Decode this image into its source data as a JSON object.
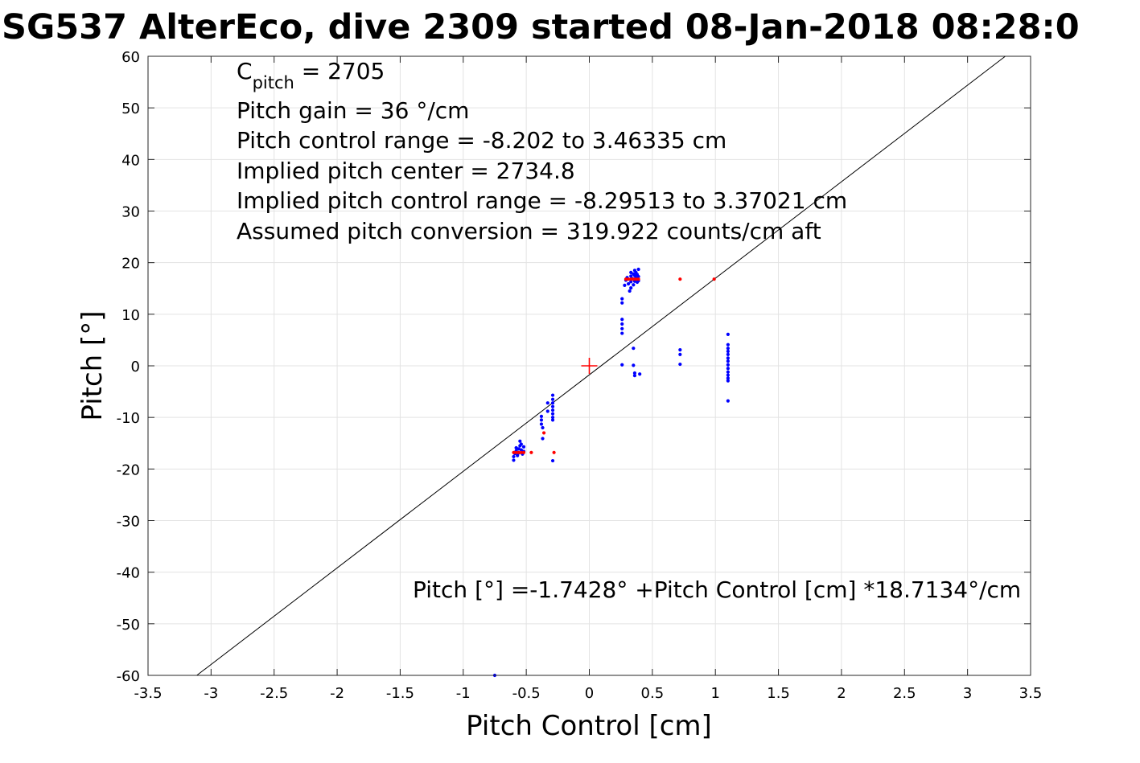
{
  "chart_data": {
    "type": "scatter",
    "title": "SG537 AlterEco, dive 2309 started 08-Jan-2018 08:28:0",
    "xlabel": "Pitch Control [cm]",
    "ylabel": "Pitch [°]",
    "xlim": [
      -3.5,
      3.5
    ],
    "ylim": [
      -60,
      60
    ],
    "x_ticks": [
      -3.5,
      -3,
      -2.5,
      -2,
      -1.5,
      -1,
      -0.5,
      0,
      0.5,
      1,
      1.5,
      2,
      2.5,
      3,
      3.5
    ],
    "x_tick_labels": [
      "-3.5",
      "-3",
      "-2.5",
      "-2",
      "-1.5",
      "-1",
      "-0.5",
      "0",
      "0.5",
      "1",
      "1.5",
      "2",
      "2.5",
      "3",
      "3.5"
    ],
    "y_ticks": [
      -60,
      -50,
      -40,
      -30,
      -20,
      -10,
      0,
      10,
      20,
      30,
      40,
      50,
      60
    ],
    "y_tick_labels": [
      "-60",
      "-50",
      "-40",
      "-30",
      "-20",
      "-10",
      "0",
      "10",
      "20",
      "30",
      "40",
      "50",
      "60"
    ],
    "grid": true,
    "annotations": {
      "c_pitch_prefix": "C",
      "c_pitch_sub": "pitch",
      "c_pitch_value": " = 2705",
      "lines": [
        "Pitch gain = 36 °/cm",
        "Pitch control range = -8.202 to 3.46335 cm",
        "Implied pitch center = 2734.8",
        "Implied pitch control range = -8.29513 to 3.37021 cm",
        "Assumed pitch conversion = 319.922 counts/cm aft"
      ],
      "fit_equation": "Pitch [°] =-1.7428° +Pitch Control [cm] *18.7134°/cm"
    },
    "fit_line": {
      "intercept": -1.7428,
      "slope": 18.7134,
      "color": "#000000"
    },
    "center_marker": {
      "x": 0,
      "y": 0,
      "color": "#ff0000"
    },
    "series": [
      {
        "color": "#0000ff",
        "points": [
          [
            -0.6,
            -18.3
          ],
          [
            -0.6,
            -17.6
          ],
          [
            -0.59,
            -17.0
          ],
          [
            -0.58,
            -16.5
          ],
          [
            -0.58,
            -15.9
          ],
          [
            -0.57,
            -17.4
          ],
          [
            -0.56,
            -16.9
          ],
          [
            -0.56,
            -16.1
          ],
          [
            -0.55,
            -15.5
          ],
          [
            -0.55,
            -14.6
          ],
          [
            -0.54,
            -15.2
          ],
          [
            -0.54,
            -16.3
          ],
          [
            -0.53,
            -17.1
          ],
          [
            -0.52,
            -15.7
          ],
          [
            -0.52,
            -16.6
          ],
          [
            -0.38,
            -9.8
          ],
          [
            -0.38,
            -10.5
          ],
          [
            -0.38,
            -11.3
          ],
          [
            -0.37,
            -12.0
          ],
          [
            -0.37,
            -14.1
          ],
          [
            -0.33,
            -7.2
          ],
          [
            -0.33,
            -8.8
          ],
          [
            -0.29,
            -5.7
          ],
          [
            -0.29,
            -6.5
          ],
          [
            -0.29,
            -7.2
          ],
          [
            -0.29,
            -7.9
          ],
          [
            -0.29,
            -8.6
          ],
          [
            -0.29,
            -9.3
          ],
          [
            -0.29,
            -10.0
          ],
          [
            -0.29,
            -10.5
          ],
          [
            -0.29,
            -18.4
          ],
          [
            -0.75,
            -60.0
          ],
          [
            0.26,
            0.2
          ],
          [
            0.26,
            6.3
          ],
          [
            0.26,
            7.2
          ],
          [
            0.26,
            8.1
          ],
          [
            0.26,
            9.0
          ],
          [
            0.26,
            12.2
          ],
          [
            0.26,
            13.0
          ],
          [
            0.28,
            15.6
          ],
          [
            0.29,
            16.6
          ],
          [
            0.3,
            17.1
          ],
          [
            0.31,
            15.9
          ],
          [
            0.32,
            14.5
          ],
          [
            0.33,
            15.1
          ],
          [
            0.33,
            16.3
          ],
          [
            0.33,
            17.4
          ],
          [
            0.33,
            18.1
          ],
          [
            0.34,
            16.9
          ],
          [
            0.35,
            15.7
          ],
          [
            0.35,
            17.8
          ],
          [
            0.36,
            16.4
          ],
          [
            0.36,
            17.5
          ],
          [
            0.36,
            18.5
          ],
          [
            0.37,
            17.1
          ],
          [
            0.37,
            18.1
          ],
          [
            0.38,
            16.2
          ],
          [
            0.38,
            17.7
          ],
          [
            0.39,
            18.7
          ],
          [
            0.39,
            17.3
          ],
          [
            0.39,
            16.5
          ],
          [
            0.35,
            3.4
          ],
          [
            0.35,
            0.1
          ],
          [
            0.36,
            -1.4
          ],
          [
            0.36,
            -1.9
          ],
          [
            0.4,
            -1.6
          ],
          [
            0.72,
            3.1
          ],
          [
            0.72,
            2.2
          ],
          [
            0.72,
            0.3
          ],
          [
            1.1,
            6.1
          ],
          [
            1.1,
            4.1
          ],
          [
            1.1,
            3.4
          ],
          [
            1.1,
            2.8
          ],
          [
            1.1,
            2.2
          ],
          [
            1.1,
            1.5
          ],
          [
            1.1,
            0.9
          ],
          [
            1.1,
            0.2
          ],
          [
            1.1,
            -0.5
          ],
          [
            1.1,
            -1.2
          ],
          [
            1.1,
            -1.8
          ],
          [
            1.1,
            -2.4
          ],
          [
            1.1,
            -2.9
          ],
          [
            1.1,
            -6.8
          ]
        ]
      },
      {
        "color": "#ff0000",
        "points": [
          [
            -0.6,
            -16.8
          ],
          [
            -0.58,
            -16.8
          ],
          [
            -0.56,
            -16.8
          ],
          [
            -0.54,
            -16.8
          ],
          [
            -0.52,
            -16.8
          ],
          [
            -0.46,
            -16.8
          ],
          [
            -0.36,
            -13.0
          ],
          [
            -0.28,
            -16.8
          ],
          [
            0.29,
            16.8
          ],
          [
            0.31,
            16.8
          ],
          [
            0.33,
            16.8
          ],
          [
            0.35,
            16.8
          ],
          [
            0.37,
            16.8
          ],
          [
            0.39,
            16.8
          ],
          [
            0.72,
            16.8
          ],
          [
            0.99,
            16.8
          ]
        ]
      }
    ]
  }
}
